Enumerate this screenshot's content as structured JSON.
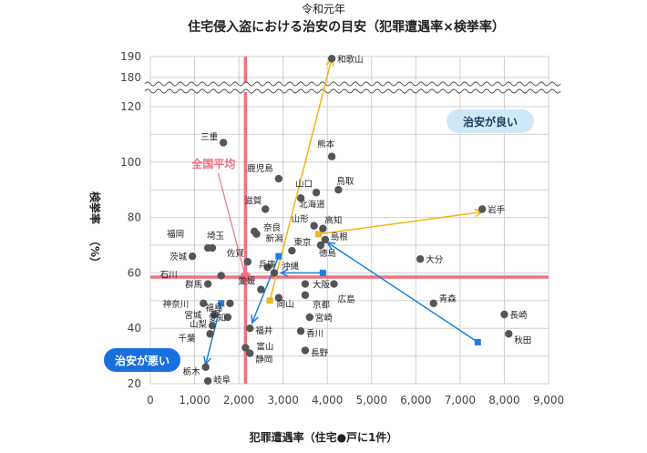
{
  "chart_data": {
    "type": "scatter",
    "title_year": "令和元年",
    "title": "住宅侵入盗における治安の目安（犯罪遭遇率×検挙率）",
    "xlabel": "犯罪遭遇率（住宅●戸に1件）",
    "ylabel": "検挙率",
    "ylabel_unit": "（%）",
    "xlim": [
      0,
      9000
    ],
    "ylim": [
      20,
      190
    ],
    "axis_break": [
      130,
      175
    ],
    "x_ticks": [
      "0",
      "1,000",
      "2,000",
      "3,000",
      "4,000",
      "5,000",
      "6,000",
      "7,000",
      "8,000",
      "9,000"
    ],
    "y_ticks": [
      "20",
      "40",
      "60",
      "80",
      "100",
      "120",
      "180",
      "190"
    ],
    "grid": true,
    "average": {
      "label": "全国平均",
      "x": 2150,
      "y": 58.5,
      "color": "#f07080"
    },
    "annotations": [
      {
        "label": "治安が良い",
        "position": "top-right",
        "bg": "#cfe8f7",
        "fg": "#1a3a5a"
      },
      {
        "label": "治安が悪い",
        "position": "bottom-left",
        "bg": "#1a6fe0",
        "fg": "#ffffff"
      }
    ],
    "points": [
      {
        "name": "和歌山",
        "x": 4100,
        "y": 189
      },
      {
        "name": "三重",
        "x": 1650,
        "y": 107
      },
      {
        "name": "熊本",
        "x": 4100,
        "y": 102
      },
      {
        "name": "鹿児島",
        "x": 2900,
        "y": 94
      },
      {
        "name": "山口",
        "x": 3750,
        "y": 89
      },
      {
        "name": "鳥取",
        "x": 4250,
        "y": 90
      },
      {
        "name": "滋賀",
        "x": 2600,
        "y": 83
      },
      {
        "name": "北海道",
        "x": 3400,
        "y": 87
      },
      {
        "name": "岩手",
        "x": 7500,
        "y": 83
      },
      {
        "name": "奈良",
        "x": 2350,
        "y": 75
      },
      {
        "name": "山形",
        "x": 3700,
        "y": 77
      },
      {
        "name": "高知",
        "x": 3900,
        "y": 76
      },
      {
        "name": "新潟",
        "x": 2400,
        "y": 74
      },
      {
        "name": "福岡",
        "x": 1300,
        "y": 69
      },
      {
        "name": "埼玉",
        "x": 1400,
        "y": 69
      },
      {
        "name": "東京",
        "x": 3200,
        "y": 68
      },
      {
        "name": "島根",
        "x": 3950,
        "y": 72
      },
      {
        "name": "徳島",
        "x": 3850,
        "y": 70
      },
      {
        "name": "茨城",
        "x": 950,
        "y": 66
      },
      {
        "name": "佐賀",
        "x": 2200,
        "y": 64
      },
      {
        "name": "大分",
        "x": 6100,
        "y": 65
      },
      {
        "name": "兵庫",
        "x": 2650,
        "y": 62
      },
      {
        "name": "沖縄",
        "x": 2800,
        "y": 60
      },
      {
        "name": "石川",
        "x": 1600,
        "y": 59
      },
      {
        "name": "群馬",
        "x": 1300,
        "y": 56
      },
      {
        "name": "大阪",
        "x": 3500,
        "y": 56
      },
      {
        "name": "愛媛",
        "x": 2500,
        "y": 54
      },
      {
        "name": "岡山",
        "x": 2900,
        "y": 51
      },
      {
        "name": "京都",
        "x": 3500,
        "y": 52
      },
      {
        "name": "広島",
        "x": 4150,
        "y": 56
      },
      {
        "name": "青森",
        "x": 6400,
        "y": 49
      },
      {
        "name": "神奈川",
        "x": 1200,
        "y": 49
      },
      {
        "name": "福島",
        "x": 1800,
        "y": 49
      },
      {
        "name": "宮城",
        "x": 1450,
        "y": 45
      },
      {
        "name": "長崎",
        "x": 8000,
        "y": 45
      },
      {
        "name": "山梨",
        "x": 1400,
        "y": 41
      },
      {
        "name": "愛知",
        "x": 1750,
        "y": 44
      },
      {
        "name": "福井",
        "x": 2250,
        "y": 40
      },
      {
        "name": "宮崎",
        "x": 3600,
        "y": 44
      },
      {
        "name": "千葉",
        "x": 1350,
        "y": 38
      },
      {
        "name": "香川",
        "x": 3400,
        "y": 39
      },
      {
        "name": "秋田",
        "x": 8100,
        "y": 38
      },
      {
        "name": "富山",
        "x": 2150,
        "y": 33
      },
      {
        "name": "静岡",
        "x": 2250,
        "y": 31
      },
      {
        "name": "長野",
        "x": 3500,
        "y": 32
      },
      {
        "name": "栃木",
        "x": 1250,
        "y": 26
      },
      {
        "name": "岐阜",
        "x": 1300,
        "y": 21
      }
    ],
    "arrows": [
      {
        "color": "#f2b418",
        "from": [
          2700,
          50
        ],
        "to": [
          4100,
          189
        ]
      },
      {
        "color": "#f2b418",
        "from": [
          3800,
          74
        ],
        "to": [
          7500,
          82
        ]
      },
      {
        "color": "#1e7fd8",
        "from": [
          2900,
          66
        ],
        "to": [
          2300,
          42
        ]
      },
      {
        "color": "#1e7fd8",
        "from": [
          7400,
          35
        ],
        "to": [
          4000,
          71
        ]
      },
      {
        "color": "#1e7fd8",
        "from": [
          1600,
          49
        ],
        "to": [
          1250,
          27
        ]
      },
      {
        "color": "#1e7fd8",
        "from": [
          3900,
          60
        ],
        "to": [
          2950,
          60
        ]
      }
    ],
    "colors": {
      "point": "#555555",
      "grid": "#d0d0d0",
      "average": "#f07080"
    }
  }
}
